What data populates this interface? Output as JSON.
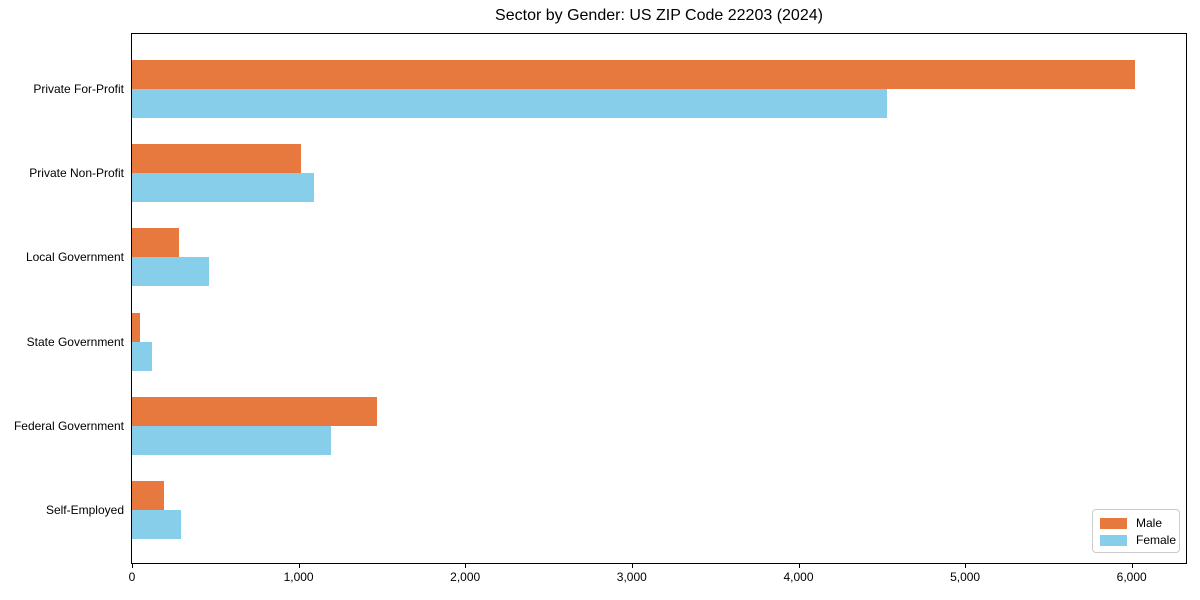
{
  "title": "Sector by Gender: US ZIP Code 22203 (2024)",
  "colors": {
    "male": "#e8793e",
    "female": "#87ceeb",
    "axis": "#000000",
    "legend_border": "#cccccc",
    "background": "#ffffff"
  },
  "legend": {
    "position": "lower right",
    "items": [
      {
        "label": "Male",
        "color": "#e8793e"
      },
      {
        "label": "Female",
        "color": "#87ceeb"
      }
    ]
  },
  "chart_data": {
    "type": "bar",
    "orientation": "horizontal",
    "title": "Sector by Gender: US ZIP Code 22203 (2024)",
    "xlabel": "",
    "ylabel": "",
    "categories": [
      "Private For-Profit",
      "Private Non-Profit",
      "Local Government",
      "State Government",
      "Federal Government",
      "Self-Employed"
    ],
    "series": [
      {
        "name": "Male",
        "color": "#e8793e",
        "values": [
          6020,
          1015,
          280,
          50,
          1470,
          190
        ]
      },
      {
        "name": "Female",
        "color": "#87ceeb",
        "values": [
          4530,
          1095,
          460,
          120,
          1195,
          295
        ]
      }
    ],
    "xlim": [
      0,
      6320
    ],
    "x_ticks": [
      0,
      1000,
      2000,
      3000,
      4000,
      5000,
      6000
    ],
    "x_tick_labels": [
      "0",
      "1,000",
      "2,000",
      "3,000",
      "4,000",
      "5,000",
      "6,000"
    ],
    "grid": false,
    "legend_position": "lower right"
  }
}
